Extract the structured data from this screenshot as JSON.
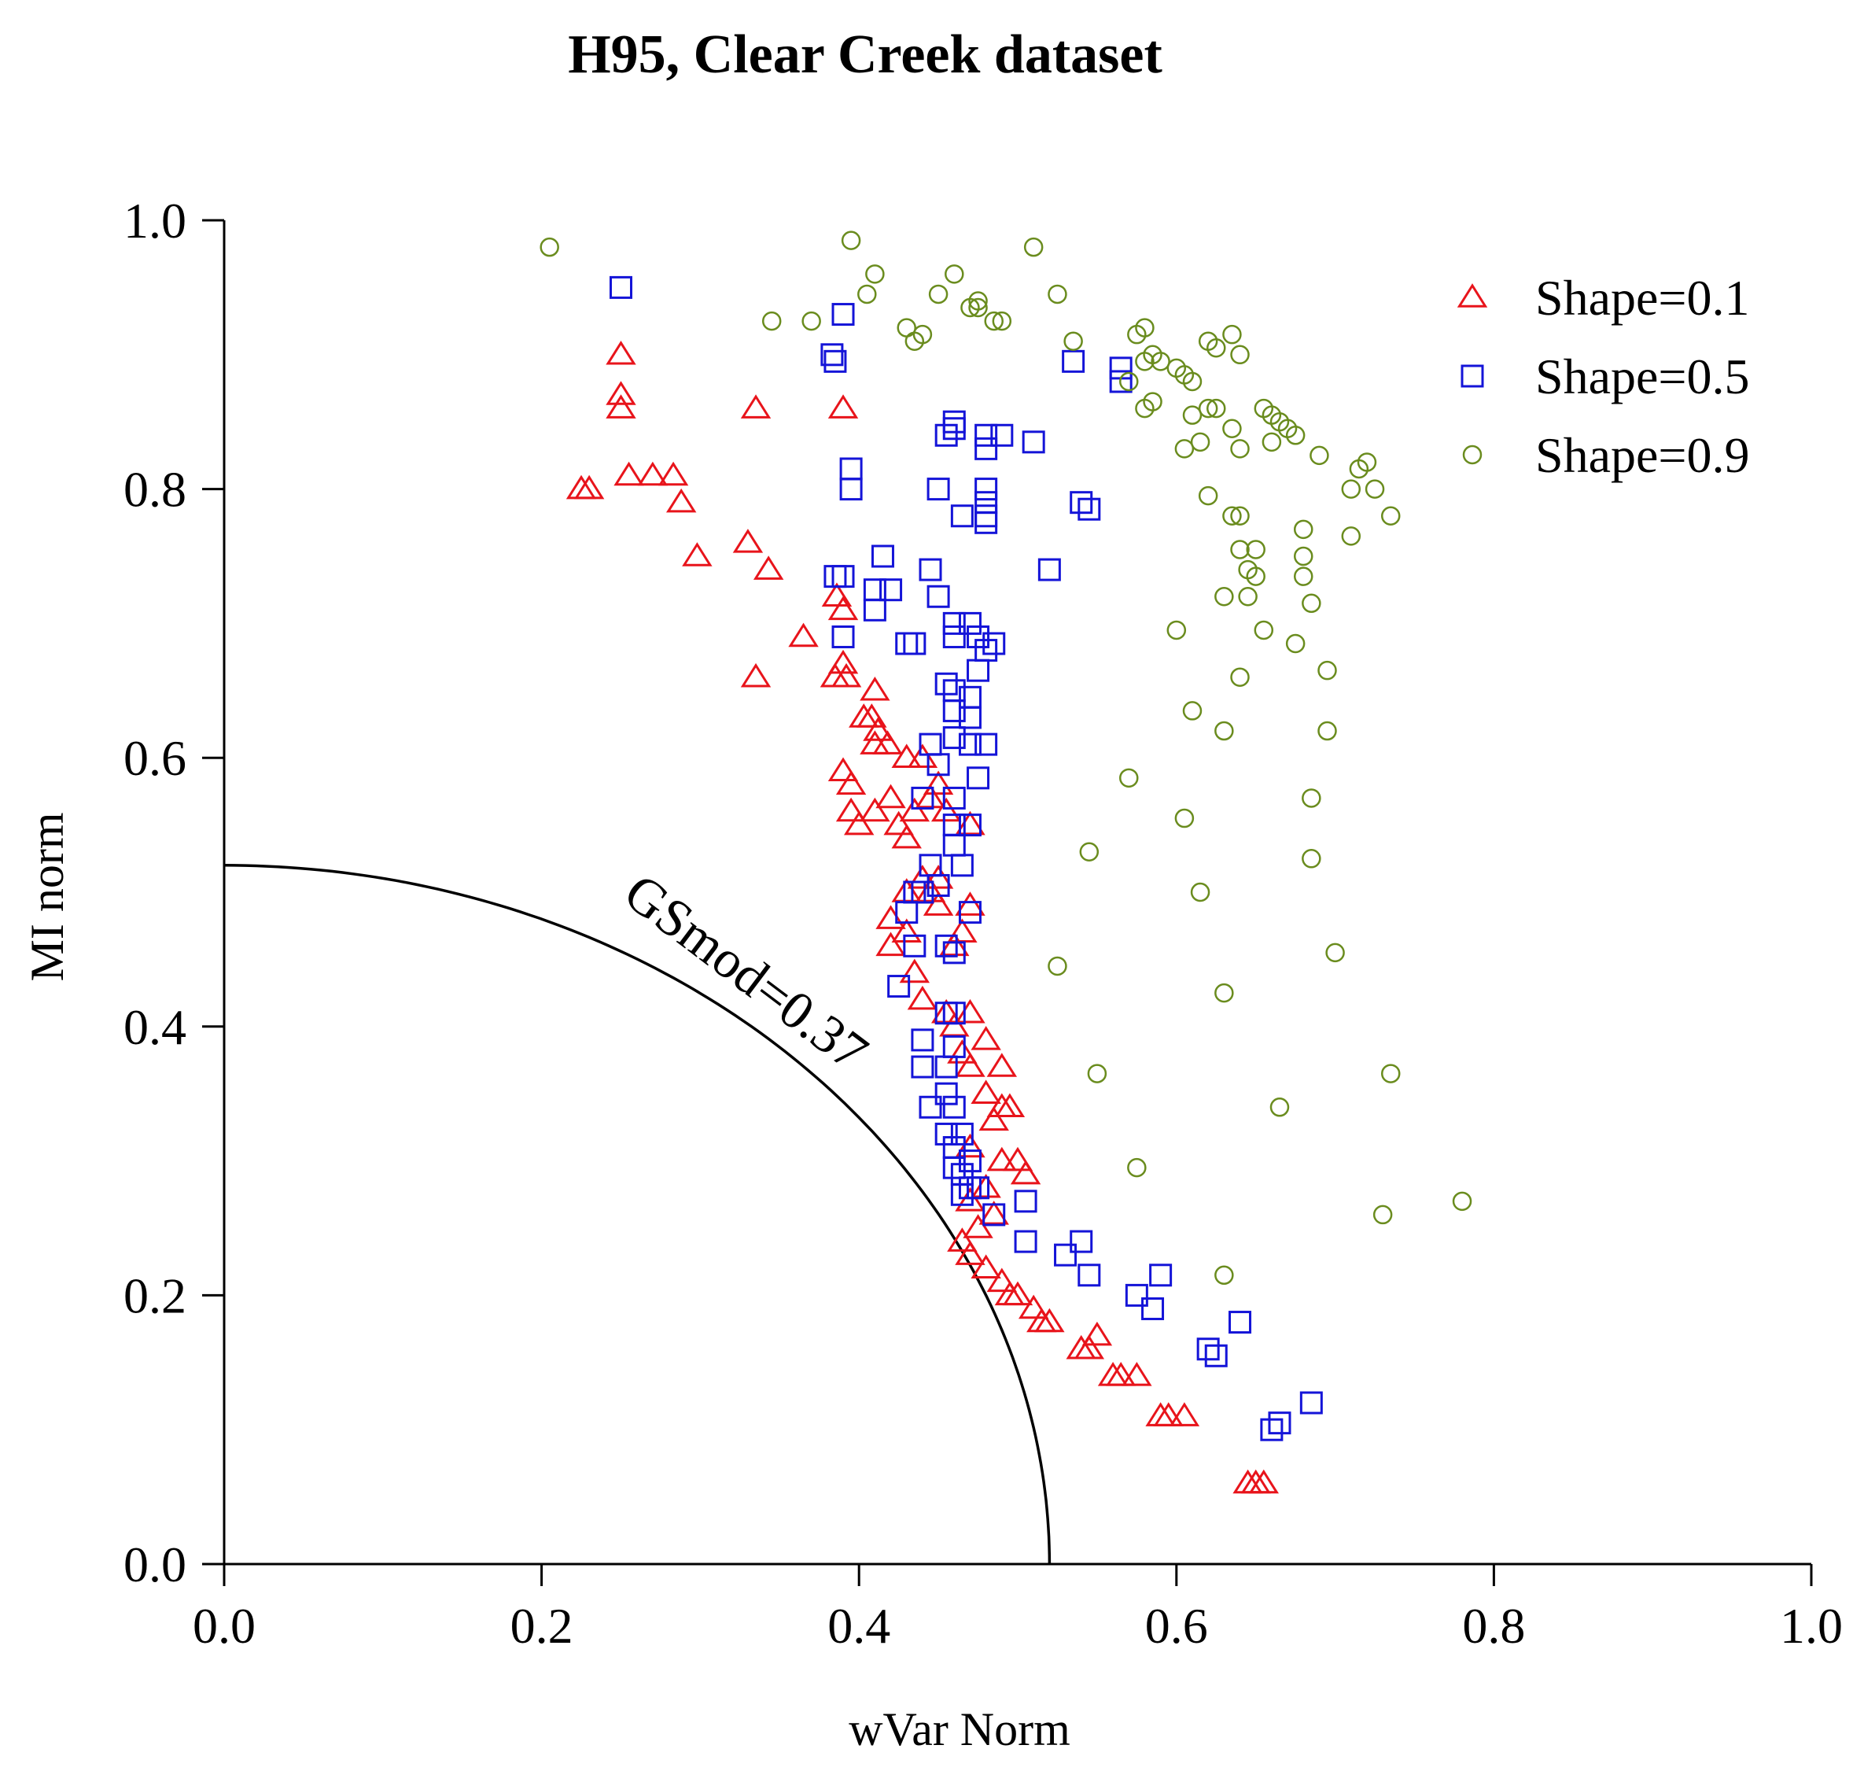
{
  "chart_data": {
    "type": "scatter",
    "title": "H95, Clear Creek dataset",
    "xlabel": "wVar Norm",
    "ylabel": "MI norm",
    "xlim": [
      0,
      1
    ],
    "ylim": [
      0,
      1
    ],
    "xticks": [
      "0.0",
      "0.2",
      "0.4",
      "0.6",
      "0.8",
      "1.0"
    ],
    "yticks": [
      "0.0",
      "0.2",
      "0.4",
      "0.6",
      "0.8",
      "1.0"
    ],
    "grid": false,
    "legend_position": "top-right",
    "reference_curve": {
      "label": "GSmod=0.37",
      "shape": "quarter-ellipse",
      "x_intercept": 0.52,
      "y_intercept": 0.52
    },
    "series": [
      {
        "name": "Shape=0.1",
        "marker": "triangle",
        "color": "#e8141b",
        "points": [
          [
            0.25,
            0.9
          ],
          [
            0.25,
            0.87
          ],
          [
            0.25,
            0.86
          ],
          [
            0.335,
            0.86
          ],
          [
            0.39,
            0.86
          ],
          [
            0.225,
            0.8
          ],
          [
            0.23,
            0.8
          ],
          [
            0.255,
            0.81
          ],
          [
            0.27,
            0.81
          ],
          [
            0.283,
            0.81
          ],
          [
            0.288,
            0.79
          ],
          [
            0.298,
            0.75
          ],
          [
            0.33,
            0.76
          ],
          [
            0.343,
            0.74
          ],
          [
            0.365,
            0.69
          ],
          [
            0.335,
            0.66
          ],
          [
            0.386,
            0.72
          ],
          [
            0.39,
            0.71
          ],
          [
            0.39,
            0.67
          ],
          [
            0.385,
            0.66
          ],
          [
            0.392,
            0.66
          ],
          [
            0.41,
            0.65
          ],
          [
            0.403,
            0.63
          ],
          [
            0.408,
            0.63
          ],
          [
            0.412,
            0.62
          ],
          [
            0.41,
            0.61
          ],
          [
            0.418,
            0.61
          ],
          [
            0.43,
            0.6
          ],
          [
            0.44,
            0.6
          ],
          [
            0.39,
            0.59
          ],
          [
            0.395,
            0.58
          ],
          [
            0.395,
            0.56
          ],
          [
            0.4,
            0.55
          ],
          [
            0.41,
            0.56
          ],
          [
            0.42,
            0.57
          ],
          [
            0.425,
            0.55
          ],
          [
            0.43,
            0.54
          ],
          [
            0.435,
            0.56
          ],
          [
            0.445,
            0.57
          ],
          [
            0.45,
            0.58
          ],
          [
            0.455,
            0.56
          ],
          [
            0.47,
            0.55
          ],
          [
            0.44,
            0.51
          ],
          [
            0.445,
            0.5
          ],
          [
            0.45,
            0.51
          ],
          [
            0.43,
            0.5
          ],
          [
            0.45,
            0.49
          ],
          [
            0.42,
            0.48
          ],
          [
            0.47,
            0.49
          ],
          [
            0.46,
            0.46
          ],
          [
            0.465,
            0.47
          ],
          [
            0.43,
            0.47
          ],
          [
            0.42,
            0.46
          ],
          [
            0.435,
            0.44
          ],
          [
            0.44,
            0.42
          ],
          [
            0.455,
            0.41
          ],
          [
            0.46,
            0.4
          ],
          [
            0.47,
            0.41
          ],
          [
            0.48,
            0.39
          ],
          [
            0.465,
            0.38
          ],
          [
            0.47,
            0.37
          ],
          [
            0.49,
            0.37
          ],
          [
            0.48,
            0.35
          ],
          [
            0.49,
            0.34
          ],
          [
            0.495,
            0.34
          ],
          [
            0.485,
            0.33
          ],
          [
            0.47,
            0.31
          ],
          [
            0.49,
            0.3
          ],
          [
            0.5,
            0.3
          ],
          [
            0.505,
            0.29
          ],
          [
            0.48,
            0.28
          ],
          [
            0.47,
            0.27
          ],
          [
            0.475,
            0.25
          ],
          [
            0.485,
            0.26
          ],
          [
            0.465,
            0.24
          ],
          [
            0.47,
            0.23
          ],
          [
            0.48,
            0.22
          ],
          [
            0.49,
            0.21
          ],
          [
            0.495,
            0.2
          ],
          [
            0.5,
            0.2
          ],
          [
            0.51,
            0.19
          ],
          [
            0.515,
            0.18
          ],
          [
            0.52,
            0.18
          ],
          [
            0.54,
            0.16
          ],
          [
            0.545,
            0.16
          ],
          [
            0.55,
            0.17
          ],
          [
            0.56,
            0.14
          ],
          [
            0.565,
            0.14
          ],
          [
            0.575,
            0.14
          ],
          [
            0.59,
            0.11
          ],
          [
            0.595,
            0.11
          ],
          [
            0.605,
            0.11
          ],
          [
            0.645,
            0.06
          ],
          [
            0.65,
            0.06
          ],
          [
            0.655,
            0.06
          ]
        ]
      },
      {
        "name": "Shape=0.5",
        "marker": "square",
        "color": "#1414d8",
        "points": [
          [
            0.25,
            0.95
          ],
          [
            0.39,
            0.93
          ],
          [
            0.383,
            0.9
          ],
          [
            0.385,
            0.895
          ],
          [
            0.535,
            0.895
          ],
          [
            0.565,
            0.89
          ],
          [
            0.565,
            0.88
          ],
          [
            0.46,
            0.85
          ],
          [
            0.455,
            0.84
          ],
          [
            0.46,
            0.845
          ],
          [
            0.48,
            0.84
          ],
          [
            0.49,
            0.84
          ],
          [
            0.48,
            0.83
          ],
          [
            0.51,
            0.835
          ],
          [
            0.395,
            0.815
          ],
          [
            0.395,
            0.8
          ],
          [
            0.45,
            0.8
          ],
          [
            0.48,
            0.8
          ],
          [
            0.48,
            0.79
          ],
          [
            0.465,
            0.78
          ],
          [
            0.48,
            0.78
          ],
          [
            0.48,
            0.775
          ],
          [
            0.54,
            0.79
          ],
          [
            0.545,
            0.785
          ],
          [
            0.385,
            0.735
          ],
          [
            0.39,
            0.735
          ],
          [
            0.415,
            0.75
          ],
          [
            0.445,
            0.74
          ],
          [
            0.52,
            0.74
          ],
          [
            0.41,
            0.725
          ],
          [
            0.42,
            0.725
          ],
          [
            0.45,
            0.72
          ],
          [
            0.41,
            0.71
          ],
          [
            0.46,
            0.7
          ],
          [
            0.47,
            0.7
          ],
          [
            0.475,
            0.69
          ],
          [
            0.48,
            0.68
          ],
          [
            0.485,
            0.685
          ],
          [
            0.43,
            0.685
          ],
          [
            0.435,
            0.685
          ],
          [
            0.39,
            0.69
          ],
          [
            0.46,
            0.69
          ],
          [
            0.475,
            0.665
          ],
          [
            0.455,
            0.655
          ],
          [
            0.46,
            0.65
          ],
          [
            0.47,
            0.645
          ],
          [
            0.46,
            0.635
          ],
          [
            0.47,
            0.63
          ],
          [
            0.46,
            0.615
          ],
          [
            0.47,
            0.61
          ],
          [
            0.48,
            0.61
          ],
          [
            0.445,
            0.61
          ],
          [
            0.45,
            0.595
          ],
          [
            0.475,
            0.585
          ],
          [
            0.46,
            0.57
          ],
          [
            0.44,
            0.57
          ],
          [
            0.46,
            0.55
          ],
          [
            0.47,
            0.55
          ],
          [
            0.46,
            0.535
          ],
          [
            0.465,
            0.52
          ],
          [
            0.445,
            0.52
          ],
          [
            0.44,
            0.5
          ],
          [
            0.435,
            0.5
          ],
          [
            0.45,
            0.505
          ],
          [
            0.47,
            0.485
          ],
          [
            0.43,
            0.485
          ],
          [
            0.435,
            0.46
          ],
          [
            0.455,
            0.46
          ],
          [
            0.46,
            0.455
          ],
          [
            0.425,
            0.43
          ],
          [
            0.455,
            0.41
          ],
          [
            0.46,
            0.41
          ],
          [
            0.44,
            0.39
          ],
          [
            0.46,
            0.385
          ],
          [
            0.455,
            0.37
          ],
          [
            0.44,
            0.37
          ],
          [
            0.445,
            0.34
          ],
          [
            0.455,
            0.35
          ],
          [
            0.46,
            0.34
          ],
          [
            0.465,
            0.32
          ],
          [
            0.455,
            0.32
          ],
          [
            0.46,
            0.31
          ],
          [
            0.47,
            0.3
          ],
          [
            0.46,
            0.295
          ],
          [
            0.465,
            0.29
          ],
          [
            0.47,
            0.28
          ],
          [
            0.475,
            0.28
          ],
          [
            0.465,
            0.275
          ],
          [
            0.485,
            0.26
          ],
          [
            0.505,
            0.27
          ],
          [
            0.505,
            0.24
          ],
          [
            0.54,
            0.24
          ],
          [
            0.53,
            0.23
          ],
          [
            0.545,
            0.215
          ],
          [
            0.59,
            0.215
          ],
          [
            0.575,
            0.2
          ],
          [
            0.585,
            0.19
          ],
          [
            0.64,
            0.18
          ],
          [
            0.62,
            0.16
          ],
          [
            0.625,
            0.155
          ],
          [
            0.685,
            0.12
          ],
          [
            0.665,
            0.105
          ],
          [
            0.66,
            0.1
          ]
        ]
      },
      {
        "name": "Shape=0.9",
        "marker": "circle",
        "color": "#6a8c1e",
        "points": [
          [
            0.205,
            0.98
          ],
          [
            0.395,
            0.985
          ],
          [
            0.51,
            0.98
          ],
          [
            0.41,
            0.96
          ],
          [
            0.46,
            0.96
          ],
          [
            0.405,
            0.945
          ],
          [
            0.45,
            0.945
          ],
          [
            0.47,
            0.935
          ],
          [
            0.475,
            0.94
          ],
          [
            0.525,
            0.945
          ],
          [
            0.345,
            0.925
          ],
          [
            0.37,
            0.925
          ],
          [
            0.43,
            0.92
          ],
          [
            0.435,
            0.91
          ],
          [
            0.44,
            0.915
          ],
          [
            0.475,
            0.935
          ],
          [
            0.485,
            0.925
          ],
          [
            0.49,
            0.925
          ],
          [
            0.535,
            0.91
          ],
          [
            0.58,
            0.92
          ],
          [
            0.575,
            0.915
          ],
          [
            0.585,
            0.9
          ],
          [
            0.58,
            0.895
          ],
          [
            0.59,
            0.895
          ],
          [
            0.6,
            0.89
          ],
          [
            0.605,
            0.885
          ],
          [
            0.57,
            0.88
          ],
          [
            0.61,
            0.88
          ],
          [
            0.62,
            0.91
          ],
          [
            0.625,
            0.905
          ],
          [
            0.635,
            0.915
          ],
          [
            0.64,
            0.9
          ],
          [
            0.58,
            0.86
          ],
          [
            0.585,
            0.865
          ],
          [
            0.61,
            0.855
          ],
          [
            0.62,
            0.86
          ],
          [
            0.625,
            0.86
          ],
          [
            0.605,
            0.83
          ],
          [
            0.615,
            0.835
          ],
          [
            0.635,
            0.845
          ],
          [
            0.64,
            0.83
          ],
          [
            0.655,
            0.86
          ],
          [
            0.66,
            0.855
          ],
          [
            0.665,
            0.85
          ],
          [
            0.66,
            0.835
          ],
          [
            0.67,
            0.845
          ],
          [
            0.675,
            0.84
          ],
          [
            0.69,
            0.825
          ],
          [
            0.715,
            0.815
          ],
          [
            0.72,
            0.82
          ],
          [
            0.725,
            0.8
          ],
          [
            0.71,
            0.8
          ],
          [
            0.735,
            0.78
          ],
          [
            0.62,
            0.795
          ],
          [
            0.635,
            0.78
          ],
          [
            0.64,
            0.78
          ],
          [
            0.71,
            0.765
          ],
          [
            0.68,
            0.77
          ],
          [
            0.64,
            0.755
          ],
          [
            0.65,
            0.755
          ],
          [
            0.68,
            0.75
          ],
          [
            0.645,
            0.74
          ],
          [
            0.65,
            0.735
          ],
          [
            0.68,
            0.735
          ],
          [
            0.63,
            0.72
          ],
          [
            0.645,
            0.72
          ],
          [
            0.685,
            0.715
          ],
          [
            0.655,
            0.695
          ],
          [
            0.6,
            0.695
          ],
          [
            0.675,
            0.685
          ],
          [
            0.64,
            0.66
          ],
          [
            0.695,
            0.665
          ],
          [
            0.61,
            0.635
          ],
          [
            0.63,
            0.62
          ],
          [
            0.695,
            0.62
          ],
          [
            0.57,
            0.585
          ],
          [
            0.685,
            0.57
          ],
          [
            0.605,
            0.555
          ],
          [
            0.545,
            0.53
          ],
          [
            0.685,
            0.525
          ],
          [
            0.615,
            0.5
          ],
          [
            0.7,
            0.455
          ],
          [
            0.525,
            0.445
          ],
          [
            0.63,
            0.425
          ],
          [
            0.55,
            0.365
          ],
          [
            0.735,
            0.365
          ],
          [
            0.665,
            0.34
          ],
          [
            0.575,
            0.295
          ],
          [
            0.73,
            0.26
          ],
          [
            0.78,
            0.27
          ],
          [
            0.63,
            0.215
          ]
        ]
      }
    ]
  }
}
